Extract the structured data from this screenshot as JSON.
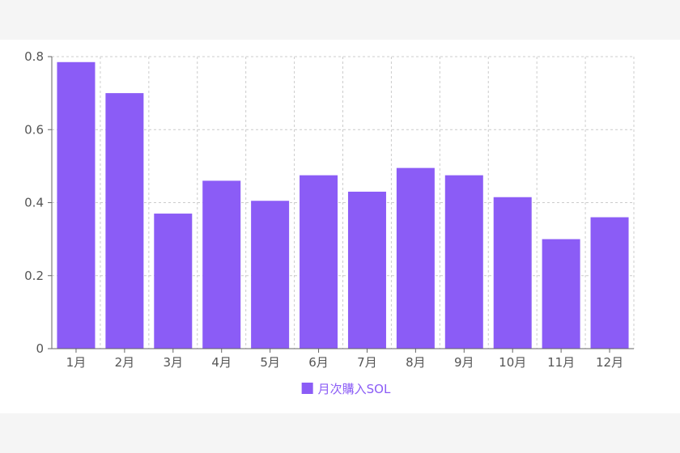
{
  "chart_data": {
    "type": "bar",
    "categories": [
      "1月",
      "2月",
      "3月",
      "4月",
      "5月",
      "6月",
      "7月",
      "8月",
      "9月",
      "10月",
      "11月",
      "12月"
    ],
    "series": [
      {
        "name": "月次購入SOL",
        "values": [
          0.785,
          0.7,
          0.37,
          0.46,
          0.405,
          0.475,
          0.43,
          0.495,
          0.475,
          0.415,
          0.3,
          0.36
        ]
      }
    ],
    "ylim": [
      0,
      0.8
    ],
    "yticks": [
      "0",
      "0.2",
      "0.4",
      "0.6",
      "0.8"
    ],
    "grid": true,
    "grid_style": "dashed",
    "legend_position": "bottom-center",
    "colors": {
      "bar": "#8b5cf6",
      "grid": "#cccccc",
      "axis": "#666666"
    }
  }
}
